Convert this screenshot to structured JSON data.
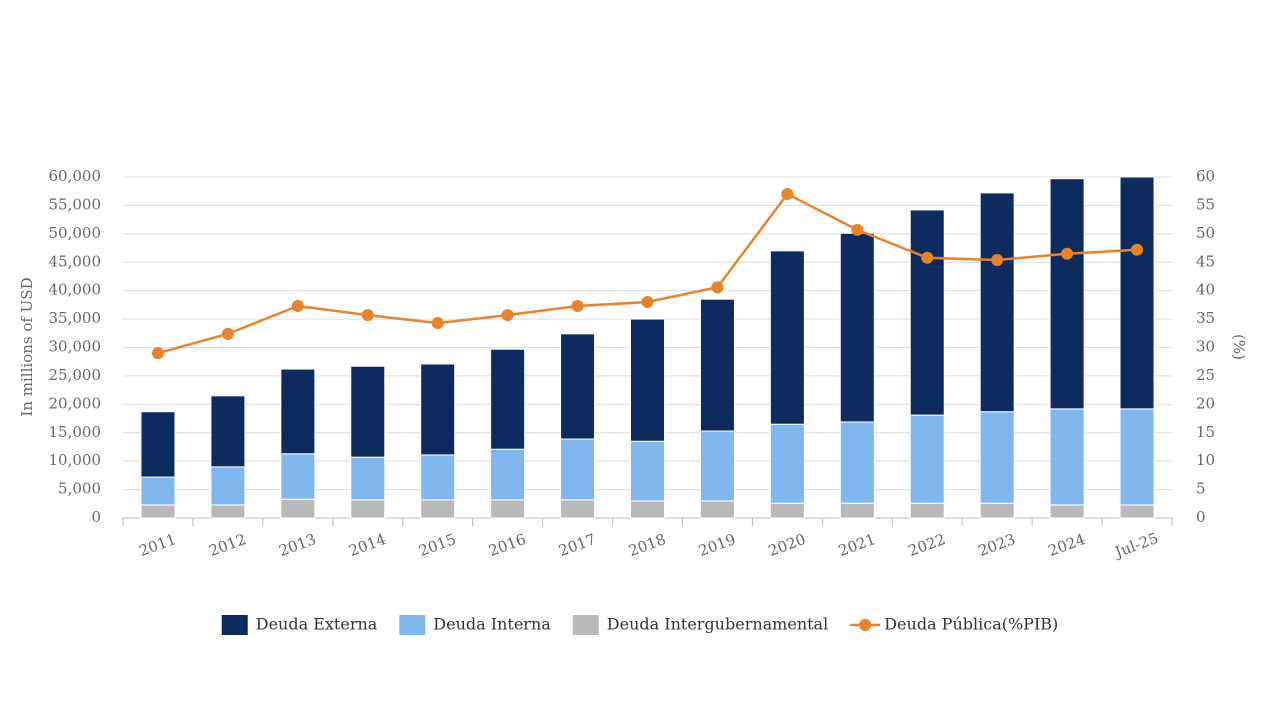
{
  "chart_data": {
    "type": "bar",
    "y_title": "In millions of USD",
    "y2_title": "(%)",
    "categories": [
      "2011",
      "2012",
      "2013",
      "2014",
      "2015",
      "2016",
      "2017",
      "2018",
      "2019",
      "2020",
      "2021",
      "2022",
      "2023",
      "2024",
      "Jul-25"
    ],
    "series": [
      {
        "name": "Deuda Externa",
        "color": "#0d2b5e",
        "values": [
          11500,
          12500,
          14900,
          16000,
          16000,
          17600,
          18500,
          21500,
          23200,
          30500,
          33200,
          36100,
          38500,
          40500,
          40800
        ]
      },
      {
        "name": "Deuda Interna",
        "color": "#80b7ee",
        "values": [
          4900,
          6700,
          8000,
          7500,
          7900,
          8900,
          10700,
          10500,
          12300,
          13900,
          14300,
          15500,
          16100,
          16900,
          16900
        ]
      },
      {
        "name": "Deuda Intergubernamental",
        "color": "#b9b9b9",
        "values": [
          2300,
          2300,
          3300,
          3200,
          3200,
          3200,
          3200,
          3000,
          3000,
          2600,
          2600,
          2600,
          2600,
          2300,
          2300
        ]
      },
      {
        "name": "Deuda Pública(%PIB)",
        "color": "#e8832a",
        "type": "line",
        "axis": "y2",
        "values": [
          29.0,
          32.4,
          37.3,
          35.7,
          34.3,
          35.7,
          37.3,
          38.0,
          40.6,
          57.0,
          50.7,
          45.8,
          45.4,
          46.5,
          47.2
        ]
      }
    ],
    "ylim": [
      0,
      60000
    ],
    "yticks": [
      0,
      {
        "value": 5000,
        "label": "5,000"
      },
      {
        "value": 10000,
        "label": "10,000"
      },
      {
        "value": 15000,
        "label": "15,000"
      },
      {
        "value": 20000,
        "label": "20,000"
      },
      {
        "value": 25000,
        "label": "25,000"
      },
      {
        "value": 30000,
        "label": "30,000"
      },
      {
        "value": 35000,
        "label": "35,000"
      },
      {
        "value": 40000,
        "label": "40,000"
      },
      {
        "value": 45000,
        "label": "45,000"
      },
      {
        "value": 50000,
        "label": "50,000"
      },
      {
        "value": 55000,
        "label": "55,000"
      },
      {
        "value": 60000,
        "label": "60,000"
      }
    ],
    "y2lim": [
      0,
      60
    ],
    "y2ticks": [
      0,
      5,
      10,
      15,
      20,
      25,
      30,
      35,
      40,
      45,
      50,
      55,
      60
    ],
    "grid": true,
    "stacked": true,
    "legend": "bottom"
  }
}
